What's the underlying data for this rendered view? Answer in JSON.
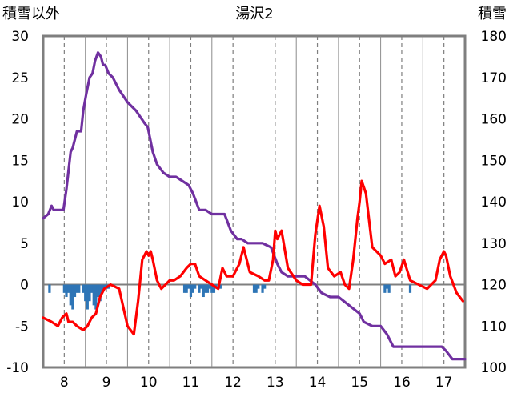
{
  "chart_data": {
    "type": "line",
    "title": "湯沢2",
    "left_axis_label": "積雪以外",
    "right_axis_label": "積雪",
    "x_ticks": [
      "8",
      "9",
      "10",
      "11",
      "12",
      "13",
      "14",
      "15",
      "16",
      "17"
    ],
    "x_range": [
      7.5,
      17.5
    ],
    "ylim_left": [
      -10,
      30
    ],
    "ylim_right": [
      100,
      180
    ],
    "y_ticks_left": [
      "-10",
      "-5",
      "0",
      "5",
      "10",
      "15",
      "20",
      "25",
      "30"
    ],
    "y_ticks_right": [
      "100",
      "110",
      "120",
      "130",
      "140",
      "150",
      "160",
      "170",
      "180"
    ],
    "grid": "vertical dashed lines at each day",
    "series": [
      {
        "axis": "right",
        "color": "#7030a0",
        "x": [
          7.5,
          7.62,
          7.7,
          7.75,
          7.98,
          8.05,
          8.15,
          8.2,
          8.3,
          8.4,
          8.45,
          8.52,
          8.6,
          8.67,
          8.73,
          8.8,
          8.87,
          8.92,
          8.97,
          9.05,
          9.15,
          9.3,
          9.5,
          9.7,
          9.9,
          9.98,
          10.1,
          10.2,
          10.35,
          10.5,
          10.65,
          10.8,
          10.95,
          11.05,
          11.2,
          11.35,
          11.5,
          11.65,
          11.8,
          11.95,
          12.1,
          12.2,
          12.35,
          12.5,
          12.7,
          12.9,
          13.05,
          13.15,
          13.3,
          13.45,
          13.7,
          13.95,
          14.1,
          14.3,
          14.5,
          14.75,
          15.0,
          15.1,
          15.3,
          15.5,
          15.65,
          15.8,
          16.0,
          16.3,
          16.6,
          16.8,
          16.95,
          17.05,
          17.2,
          17.5
        ],
        "values": [
          136,
          137,
          139,
          138,
          138,
          143,
          152,
          153,
          157,
          157,
          162,
          166,
          170,
          171,
          174,
          176,
          175,
          173,
          173,
          171,
          170,
          167,
          164,
          162,
          159,
          158,
          152,
          149,
          147,
          146,
          146,
          145,
          144,
          142,
          138,
          138,
          137,
          137,
          137,
          133,
          131,
          131,
          130,
          130,
          130,
          129,
          125,
          123,
          122,
          122,
          122,
          120,
          118,
          117,
          117,
          115,
          113,
          111,
          110,
          110,
          108,
          105,
          105,
          105,
          105,
          105,
          105,
          104,
          102,
          102
        ]
      },
      {
        "axis": "left",
        "color": "#ff0000",
        "x": [
          7.5,
          7.7,
          7.85,
          7.95,
          8.05,
          8.1,
          8.2,
          8.3,
          8.45,
          8.55,
          8.65,
          8.75,
          8.85,
          8.95,
          9.1,
          9.3,
          9.5,
          9.65,
          9.75,
          9.85,
          9.95,
          10.0,
          10.05,
          10.1,
          10.2,
          10.3,
          10.5,
          10.6,
          10.75,
          10.9,
          11.0,
          11.1,
          11.2,
          11.35,
          11.5,
          11.65,
          11.75,
          11.85,
          12.0,
          12.1,
          12.15,
          12.25,
          12.4,
          12.6,
          12.75,
          12.85,
          12.95,
          13.0,
          13.05,
          13.15,
          13.3,
          13.5,
          13.65,
          13.85,
          13.95,
          14.05,
          14.15,
          14.25,
          14.4,
          14.55,
          14.65,
          14.75,
          14.85,
          14.95,
          15.0,
          15.05,
          15.15,
          15.3,
          15.5,
          15.6,
          15.75,
          15.85,
          15.95,
          16.05,
          16.2,
          16.4,
          16.6,
          16.8,
          16.9,
          17.0,
          17.05,
          17.15,
          17.3,
          17.45
        ],
        "values": [
          -4,
          -4.5,
          -5,
          -4,
          -3.5,
          -4.5,
          -4.5,
          -5,
          -5.5,
          -5,
          -4,
          -3.5,
          -1.5,
          -0.5,
          0,
          -0.5,
          -5,
          -6,
          -2,
          3,
          4,
          3.5,
          4,
          3,
          0.5,
          -0.5,
          0.5,
          0.5,
          1,
          2,
          2.5,
          2.5,
          1,
          0.5,
          0,
          -0.5,
          2,
          1,
          1,
          2,
          2.5,
          4.5,
          1.5,
          1,
          0.5,
          0.5,
          3,
          6.5,
          5.5,
          6.5,
          2,
          0.5,
          0,
          0,
          6,
          9.5,
          7,
          2,
          1,
          1.5,
          0,
          -0.5,
          3,
          8,
          10,
          12.5,
          11,
          4.5,
          3.5,
          2.5,
          3,
          1,
          1.5,
          3,
          0.5,
          0,
          -0.5,
          0.5,
          3,
          4,
          3.5,
          1,
          -1,
          -2
        ]
      },
      {
        "axis": "left",
        "type": "bar",
        "color": "#2e75b6",
        "x": [
          7.65,
          8.0,
          8.05,
          8.1,
          8.15,
          8.2,
          8.25,
          8.3,
          8.35,
          8.45,
          8.5,
          8.55,
          8.6,
          8.65,
          8.7,
          8.75,
          8.8,
          8.85,
          8.9,
          8.95,
          9.0,
          9.05,
          10.85,
          10.9,
          10.95,
          11.0,
          11.05,
          11.1,
          11.2,
          11.25,
          11.3,
          11.35,
          11.4,
          11.45,
          11.5,
          11.55,
          11.6,
          11.7,
          12.5,
          12.55,
          12.6,
          12.7,
          12.75,
          15.6,
          15.65,
          15.7,
          16.2
        ],
        "values": [
          -1,
          -1,
          -1.5,
          -1,
          -2.5,
          -3,
          -1.5,
          -1,
          -1,
          -1,
          -2,
          -3,
          -2,
          -1,
          -2.5,
          -3,
          -1.5,
          -2,
          -1,
          -0.5,
          -0.5,
          -0.5,
          -1,
          -1,
          -0.5,
          -1.5,
          -1,
          -0.5,
          -1,
          -0.5,
          -1.5,
          -1,
          -1,
          -0.5,
          -1,
          -1,
          -0.5,
          -0.5,
          -1,
          -1,
          -0.5,
          -1,
          -0.5,
          -1,
          -0.5,
          -1,
          -1
        ]
      }
    ]
  }
}
